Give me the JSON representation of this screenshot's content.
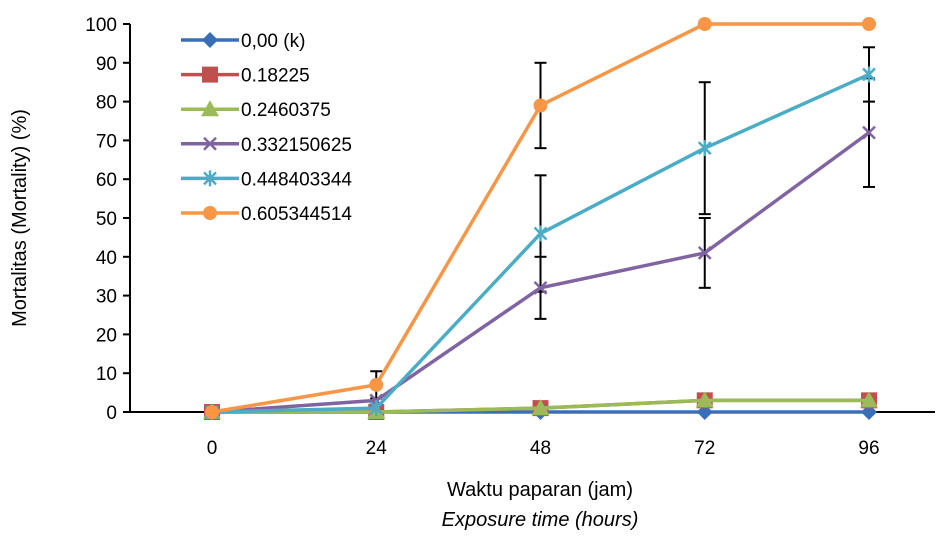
{
  "chart_data": {
    "type": "line",
    "x": [
      0,
      24,
      48,
      72,
      96
    ],
    "xlabel": "Waktu paparan (jam)",
    "xlabel_sub": "Exposure time (hours)",
    "ylabel": "Mortalitas (Mortality) (%)",
    "ylim": [
      0,
      100
    ],
    "yticks": [
      0,
      10,
      20,
      30,
      40,
      50,
      60,
      70,
      80,
      90,
      100
    ],
    "grid": false,
    "legend_position": "top-left",
    "series": [
      {
        "name": "0,00 (k)",
        "values": [
          0,
          0,
          0,
          0,
          0
        ],
        "color": "#3a6fb7",
        "marker": "diamond"
      },
      {
        "name": "0.18225",
        "values": [
          0,
          0,
          1,
          3,
          3
        ],
        "color": "#c0504d",
        "marker": "square"
      },
      {
        "name": "0.2460375",
        "values": [
          0,
          0,
          1,
          3,
          3
        ],
        "color": "#9bbb59",
        "marker": "triangle"
      },
      {
        "name": "0.332150625",
        "values": [
          0,
          3,
          32,
          41,
          72
        ],
        "color": "#8064a2",
        "marker": "x",
        "error": [
          null,
          null,
          8,
          9,
          14
        ]
      },
      {
        "name": "0.448403344",
        "values": [
          0,
          1,
          46,
          68,
          87
        ],
        "color": "#4bacc6",
        "marker": "star",
        "error": [
          null,
          null,
          15,
          17,
          7
        ]
      },
      {
        "name": "0.605344514",
        "values": [
          0,
          7,
          79,
          100,
          100
        ],
        "color": "#f79646",
        "marker": "circle",
        "error": [
          null,
          3.5,
          11,
          null,
          null
        ]
      }
    ]
  }
}
